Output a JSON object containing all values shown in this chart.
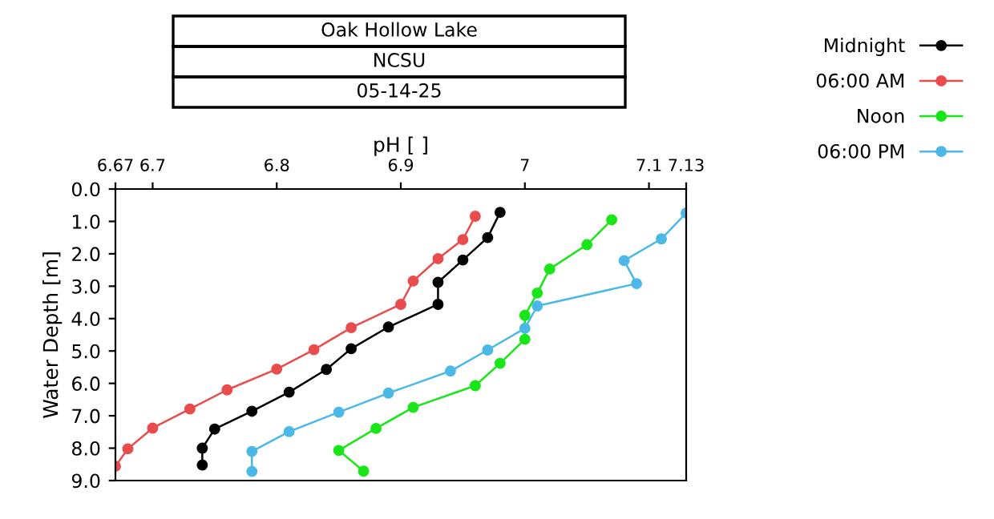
{
  "chart_data": {
    "type": "line",
    "title": "Oak Hollow Lake",
    "subtitle": "NCSU",
    "annotations": [
      "05-14-25"
    ],
    "xlabel": "pH [ ]",
    "ylabel": "Water Depth [m]",
    "xlim": [
      6.67,
      7.13
    ],
    "xticks": [
      6.67,
      6.7,
      6.8,
      6.9,
      7,
      7.1,
      7.13
    ],
    "ylim": [
      9,
      0
    ],
    "yticks": [
      {
        "value": 0,
        "label": "0.0"
      },
      {
        "value": 1,
        "label": "1.0"
      },
      {
        "value": 2,
        "label": "2.0"
      },
      {
        "value": 3,
        "label": "3.0"
      },
      {
        "value": 4,
        "label": "4.0"
      },
      {
        "value": 5,
        "label": "5.0"
      },
      {
        "value": 6,
        "label": "6.0"
      },
      {
        "value": 7,
        "label": "7.0"
      },
      {
        "value": 8,
        "label": "8.0"
      },
      {
        "value": 9,
        "label": "9.0"
      }
    ],
    "marker": "circle",
    "line_style": "solid",
    "grid": false,
    "legend": "top right",
    "series": [
      {
        "name": "Midnight",
        "color": "#000000",
        "x": [
          6.98,
          6.97,
          6.95,
          6.93,
          6.93,
          6.89,
          6.86,
          6.84,
          6.81,
          6.78,
          6.75,
          6.74,
          6.74
        ],
        "values": [
          0.72,
          1.5,
          2.19,
          2.88,
          3.56,
          4.26,
          4.93,
          5.57,
          6.27,
          6.86,
          7.41,
          8.0,
          8.52
        ]
      },
      {
        "name": "06:00 AM",
        "color": "#e84c4c",
        "x": [
          6.96,
          6.95,
          6.93,
          6.91,
          6.9,
          6.86,
          6.83,
          6.8,
          6.76,
          6.73,
          6.7,
          6.68,
          6.67
        ],
        "values": [
          0.84,
          1.56,
          2.15,
          2.84,
          3.56,
          4.28,
          4.96,
          5.56,
          6.2,
          6.79,
          7.38,
          8.02,
          8.56
        ]
      },
      {
        "name": "Noon",
        "color": "#19e619",
        "x": [
          7.07,
          7.05,
          7.02,
          7.01,
          7.0,
          7.0,
          6.98,
          6.96,
          6.91,
          6.88,
          6.85,
          6.87
        ],
        "values": [
          0.95,
          1.72,
          2.47,
          3.21,
          3.9,
          4.64,
          5.38,
          6.07,
          6.74,
          7.39,
          8.07,
          8.71
        ]
      },
      {
        "name": "06:00 PM",
        "color": "#4cb8e8",
        "x": [
          7.13,
          7.11,
          7.08,
          7.09,
          7.01,
          7.0,
          6.97,
          6.94,
          6.89,
          6.85,
          6.81,
          6.78,
          6.78
        ],
        "values": [
          0.74,
          1.54,
          2.21,
          2.92,
          3.61,
          4.3,
          4.97,
          5.62,
          6.3,
          6.89,
          7.49,
          8.1,
          8.72
        ]
      }
    ]
  }
}
